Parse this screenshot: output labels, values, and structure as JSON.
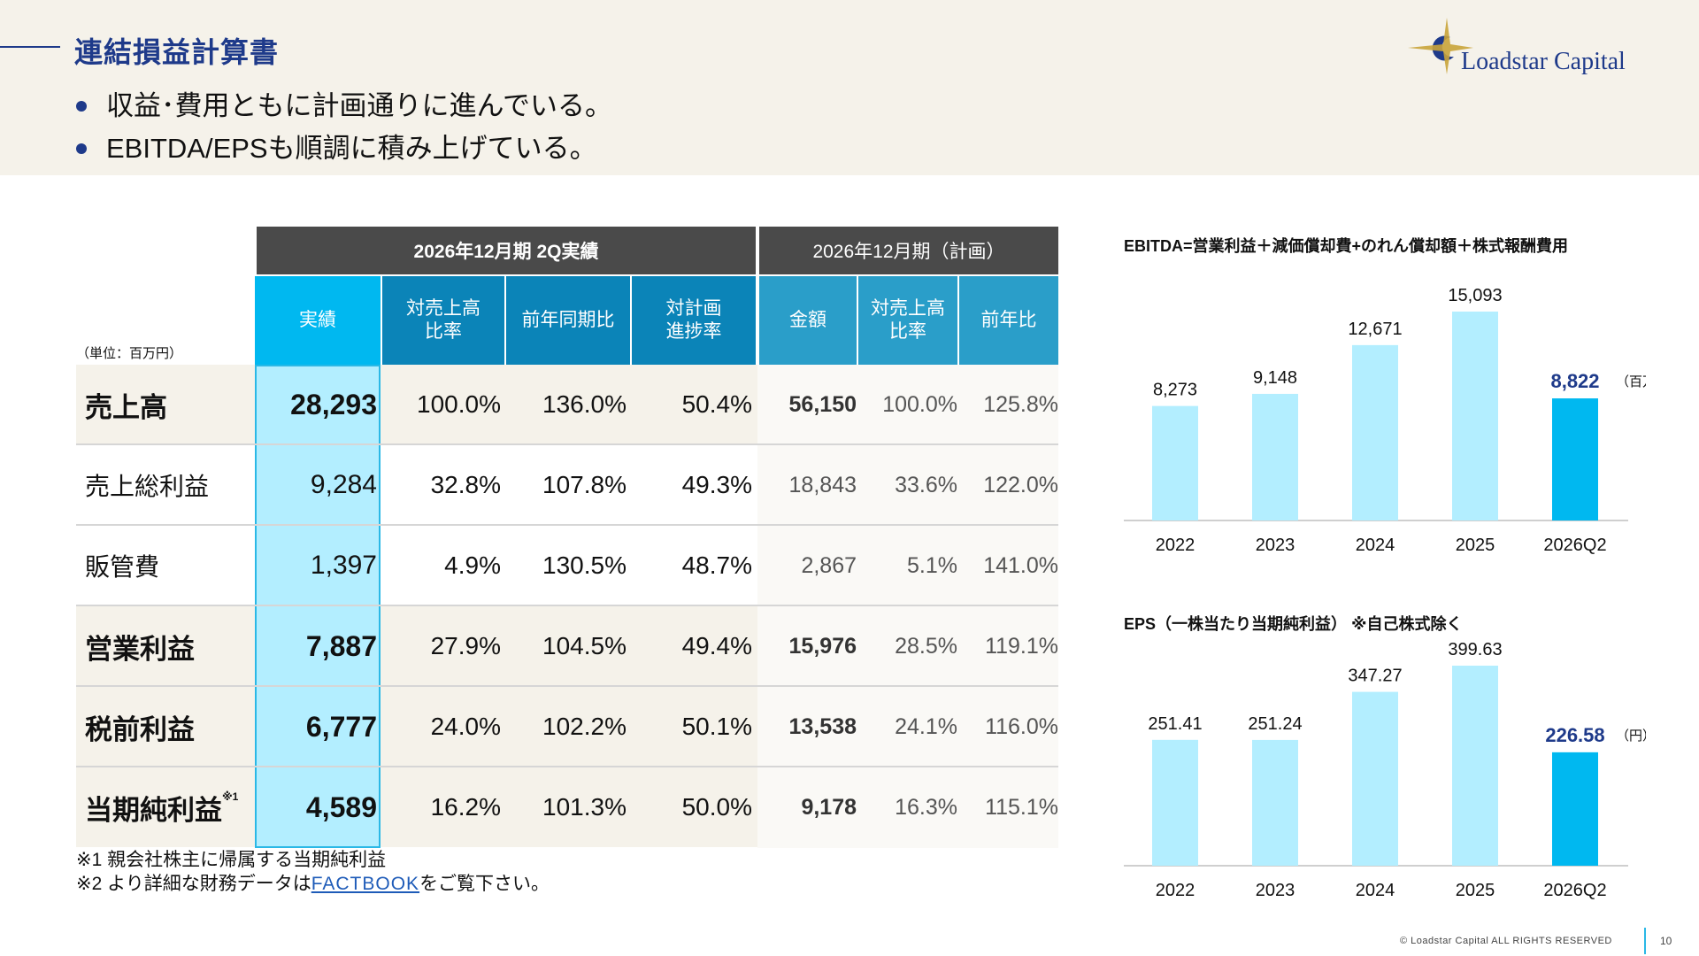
{
  "header": {
    "title": "連結損益計算書",
    "bullets": [
      "収益･費用ともに計画通りに進んでいる。",
      "EBITDA/EPSも順調に積み上げている。"
    ]
  },
  "logo": {
    "text": "Loadstar Capital",
    "icon": "star-crescent-logo"
  },
  "table": {
    "unit": "（単位：百万円）",
    "group_actual": "2026年12月期 2Q実績",
    "group_plan": "2026年12月期（計画）",
    "headers": [
      "実績",
      "対売上高\n比率",
      "前年同期比",
      "対計画\n進捗率",
      "金額",
      "対売上高\n比率",
      "前年比"
    ],
    "rows": [
      {
        "label": "売上高",
        "sup": "",
        "actual": "28,293",
        "ratio": "100.0%",
        "yoy": "136.0%",
        "progress": "50.4%",
        "plan": "56,150",
        "plan_ratio": "100.0%",
        "plan_yoy": "125.8%"
      },
      {
        "label": "売上総利益",
        "sup": "",
        "actual": "9,284",
        "ratio": "32.8%",
        "yoy": "107.8%",
        "progress": "49.3%",
        "plan": "18,843",
        "plan_ratio": "33.6%",
        "plan_yoy": "122.0%"
      },
      {
        "label": "販管費",
        "sup": "",
        "actual": "1,397",
        "ratio": "4.9%",
        "yoy": "130.5%",
        "progress": "48.7%",
        "plan": "2,867",
        "plan_ratio": "5.1%",
        "plan_yoy": "141.0%"
      },
      {
        "label": "営業利益",
        "sup": "",
        "actual": "7,887",
        "ratio": "27.9%",
        "yoy": "104.5%",
        "progress": "49.4%",
        "plan": "15,976",
        "plan_ratio": "28.5%",
        "plan_yoy": "119.1%"
      },
      {
        "label": "税前利益",
        "sup": "",
        "actual": "6,777",
        "ratio": "24.0%",
        "yoy": "102.2%",
        "progress": "50.1%",
        "plan": "13,538",
        "plan_ratio": "24.1%",
        "plan_yoy": "116.0%"
      },
      {
        "label": "当期純利益",
        "sup": "※1",
        "actual": "4,589",
        "ratio": "16.2%",
        "yoy": "101.3%",
        "progress": "50.0%",
        "plan": "9,178",
        "plan_ratio": "16.3%",
        "plan_yoy": "115.1%"
      }
    ],
    "note1": "※1 親会社株主に帰属する当期純利益",
    "note2_prefix": "※2 より詳細な財務データは",
    "note2_link": "FACTBOOK",
    "note2_suffix": "をご覧下さい。"
  },
  "chart_data": [
    {
      "type": "bar",
      "title": "EBITDA=営業利益＋減価償却費+のれん償却額＋株式報酬費用",
      "categories": [
        "2022",
        "2023",
        "2024",
        "2025",
        "2026Q2"
      ],
      "values": [
        8273,
        9148,
        12671,
        15093,
        8822
      ],
      "value_labels": [
        "8,273",
        "9,148",
        "12,671",
        "15,093",
        "8,822"
      ],
      "unit": "（百万円）",
      "colors": {
        "bar": "#b3eeff",
        "highlight": "#00b8f0",
        "highlight_label": "#1e3a8a"
      }
    },
    {
      "type": "bar",
      "title": "EPS（一株当たり当期純利益） ※自己株式除く",
      "categories": [
        "2022",
        "2023",
        "2024",
        "2025",
        "2026Q2"
      ],
      "values": [
        251.41,
        251.24,
        347.27,
        399.63,
        226.58
      ],
      "value_labels": [
        "251.41",
        "251.24",
        "347.27",
        "399.63",
        "226.58"
      ],
      "unit": "（円）",
      "colors": {
        "bar": "#b3eeff",
        "highlight": "#00b8f0",
        "highlight_label": "#1e3a8a"
      }
    }
  ],
  "footer": {
    "copyright": "© Loadstar Capital ALL RIGHTS RESERVED",
    "page": "10"
  }
}
